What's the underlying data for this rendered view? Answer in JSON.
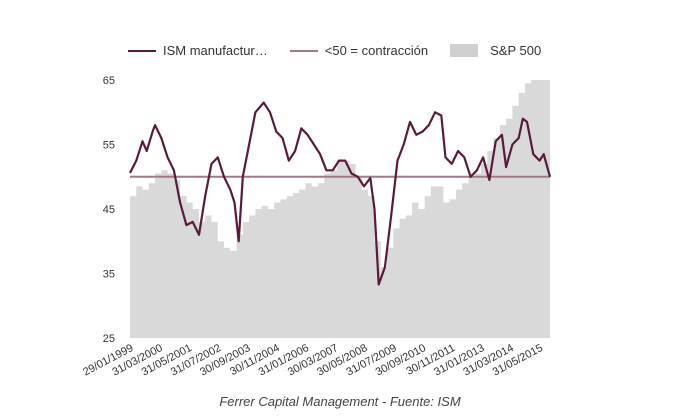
{
  "chart_data": {
    "type": "line",
    "title": "",
    "xlabel": "",
    "ylabel": "",
    "ylim": [
      25,
      65
    ],
    "yticks": [
      25,
      35,
      45,
      55,
      65
    ],
    "grid": false,
    "legend_position": "top",
    "xtick_labels": [
      "29/01/1999",
      "31/03/2000",
      "31/05/2001",
      "31/07/2002",
      "30/09/2003",
      "30/11/2004",
      "31/01/2006",
      "30/03/2007",
      "30/05/2008",
      "31/07/2009",
      "30/09/2010",
      "30/11/2011",
      "31/01/2013",
      "31/03/2014",
      "31/05/2015"
    ],
    "xtick_dates": [
      "1999-01",
      "2000-03",
      "2001-05",
      "2002-07",
      "2003-09",
      "2004-11",
      "2006-01",
      "2007-03",
      "2008-05",
      "2009-07",
      "2010-09",
      "2011-11",
      "2013-01",
      "2014-03",
      "2015-05"
    ],
    "x_range": [
      "1999-01",
      "2015-10"
    ],
    "series": [
      {
        "name": "ISM manufactur…",
        "type": "line",
        "color": "#5a1a3c",
        "points": [
          [
            "1999-01",
            50.6
          ],
          [
            "1999-04",
            52.5
          ],
          [
            "1999-07",
            55.5
          ],
          [
            "1999-09",
            54.0
          ],
          [
            "1999-12",
            57.2
          ],
          [
            "2000-01",
            58.0
          ],
          [
            "2000-04",
            56.0
          ],
          [
            "2000-07",
            53.0
          ],
          [
            "2000-10",
            51.0
          ],
          [
            "2001-01",
            46.0
          ],
          [
            "2001-04",
            42.5
          ],
          [
            "2001-07",
            43.0
          ],
          [
            "2001-10",
            41.0
          ],
          [
            "2002-01",
            47.0
          ],
          [
            "2002-04",
            52.0
          ],
          [
            "2002-07",
            53.0
          ],
          [
            "2002-10",
            50.0
          ],
          [
            "2003-01",
            48.0
          ],
          [
            "2003-03",
            46.0
          ],
          [
            "2003-05",
            40.0
          ],
          [
            "2003-07",
            50.0
          ],
          [
            "2003-10",
            55.0
          ],
          [
            "2004-01",
            60.0
          ],
          [
            "2004-05",
            61.5
          ],
          [
            "2004-08",
            60.0
          ],
          [
            "2004-11",
            57.0
          ],
          [
            "2005-02",
            56.0
          ],
          [
            "2005-05",
            52.5
          ],
          [
            "2005-08",
            54.0
          ],
          [
            "2005-11",
            57.5
          ],
          [
            "2006-02",
            56.5
          ],
          [
            "2006-05",
            55.0
          ],
          [
            "2006-08",
            53.5
          ],
          [
            "2006-11",
            51.0
          ],
          [
            "2007-02",
            51.0
          ],
          [
            "2007-05",
            52.5
          ],
          [
            "2007-08",
            52.5
          ],
          [
            "2007-11",
            50.5
          ],
          [
            "2008-02",
            50.0
          ],
          [
            "2008-05",
            48.5
          ],
          [
            "2008-08",
            49.8
          ],
          [
            "2008-10",
            45.0
          ],
          [
            "2008-12",
            33.3
          ],
          [
            "2009-03",
            36.0
          ],
          [
            "2009-06",
            44.0
          ],
          [
            "2009-09",
            52.5
          ],
          [
            "2009-12",
            55.0
          ],
          [
            "2010-03",
            58.5
          ],
          [
            "2010-06",
            56.5
          ],
          [
            "2010-09",
            57.0
          ],
          [
            "2010-12",
            58.0
          ],
          [
            "2011-03",
            60.0
          ],
          [
            "2011-06",
            59.5
          ],
          [
            "2011-08",
            53.0
          ],
          [
            "2011-11",
            52.0
          ],
          [
            "2012-02",
            54.0
          ],
          [
            "2012-05",
            53.0
          ],
          [
            "2012-08",
            50.0
          ],
          [
            "2012-11",
            51.0
          ],
          [
            "2013-02",
            53.0
          ],
          [
            "2013-05",
            49.5
          ],
          [
            "2013-08",
            55.5
          ],
          [
            "2013-11",
            56.5
          ],
          [
            "2014-01",
            51.5
          ],
          [
            "2014-04",
            55.0
          ],
          [
            "2014-07",
            56.0
          ],
          [
            "2014-09",
            59.0
          ],
          [
            "2014-11",
            58.5
          ],
          [
            "2015-02",
            53.5
          ],
          [
            "2015-05",
            52.5
          ],
          [
            "2015-07",
            53.5
          ],
          [
            "2015-10",
            50.0
          ]
        ]
      },
      {
        "name": "<50 = contracción",
        "type": "hline",
        "color": "#a07a88",
        "value": 50
      },
      {
        "name": "S&P 500",
        "type": "area",
        "color": "#d9d9d9",
        "points": [
          [
            "1999-01",
            47.0
          ],
          [
            "1999-04",
            48.5
          ],
          [
            "1999-07",
            48.0
          ],
          [
            "1999-10",
            49.0
          ],
          [
            "2000-01",
            50.5
          ],
          [
            "2000-04",
            51.0
          ],
          [
            "2000-07",
            50.5
          ],
          [
            "2000-10",
            49.5
          ],
          [
            "2001-01",
            47.0
          ],
          [
            "2001-04",
            46.0
          ],
          [
            "2001-07",
            45.0
          ],
          [
            "2001-10",
            43.0
          ],
          [
            "2002-01",
            44.0
          ],
          [
            "2002-04",
            43.0
          ],
          [
            "2002-07",
            40.0
          ],
          [
            "2002-10",
            39.0
          ],
          [
            "2003-01",
            38.5
          ],
          [
            "2003-04",
            41.0
          ],
          [
            "2003-07",
            43.0
          ],
          [
            "2003-10",
            44.0
          ],
          [
            "2004-01",
            45.0
          ],
          [
            "2004-04",
            45.5
          ],
          [
            "2004-07",
            45.0
          ],
          [
            "2004-10",
            46.0
          ],
          [
            "2005-01",
            46.5
          ],
          [
            "2005-04",
            47.0
          ],
          [
            "2005-07",
            47.5
          ],
          [
            "2005-10",
            48.0
          ],
          [
            "2006-01",
            49.0
          ],
          [
            "2006-04",
            48.5
          ],
          [
            "2006-07",
            49.0
          ],
          [
            "2006-10",
            50.5
          ],
          [
            "2007-01",
            51.0
          ],
          [
            "2007-04",
            52.5
          ],
          [
            "2007-07",
            52.5
          ],
          [
            "2007-10",
            52.0
          ],
          [
            "2008-01",
            50.0
          ],
          [
            "2008-04",
            48.0
          ],
          [
            "2008-07",
            47.0
          ],
          [
            "2008-10",
            40.0
          ],
          [
            "2009-01",
            36.0
          ],
          [
            "2009-04",
            39.0
          ],
          [
            "2009-07",
            42.0
          ],
          [
            "2009-10",
            43.5
          ],
          [
            "2010-01",
            44.0
          ],
          [
            "2010-04",
            46.0
          ],
          [
            "2010-07",
            45.0
          ],
          [
            "2010-10",
            47.0
          ],
          [
            "2011-01",
            48.5
          ],
          [
            "2011-04",
            48.5
          ],
          [
            "2011-07",
            46.0
          ],
          [
            "2011-10",
            46.5
          ],
          [
            "2012-01",
            48.0
          ],
          [
            "2012-04",
            49.0
          ],
          [
            "2012-07",
            50.0
          ],
          [
            "2012-10",
            50.5
          ],
          [
            "2013-01",
            52.0
          ],
          [
            "2013-04",
            54.0
          ],
          [
            "2013-07",
            56.0
          ],
          [
            "2013-10",
            58.0
          ],
          [
            "2014-01",
            59.0
          ],
          [
            "2014-04",
            61.0
          ],
          [
            "2014-07",
            63.0
          ],
          [
            "2014-10",
            64.5
          ],
          [
            "2015-01",
            65.0
          ],
          [
            "2015-04",
            65.0
          ],
          [
            "2015-07",
            65.0
          ],
          [
            "2015-10",
            64.0
          ]
        ]
      }
    ]
  },
  "legend": {
    "ism_label": "ISM manufactur…",
    "threshold_label": "<50 = contracción",
    "sp500_label": "S&P 500"
  },
  "caption": "Ferrer Capital Management - Fuente: ISM"
}
